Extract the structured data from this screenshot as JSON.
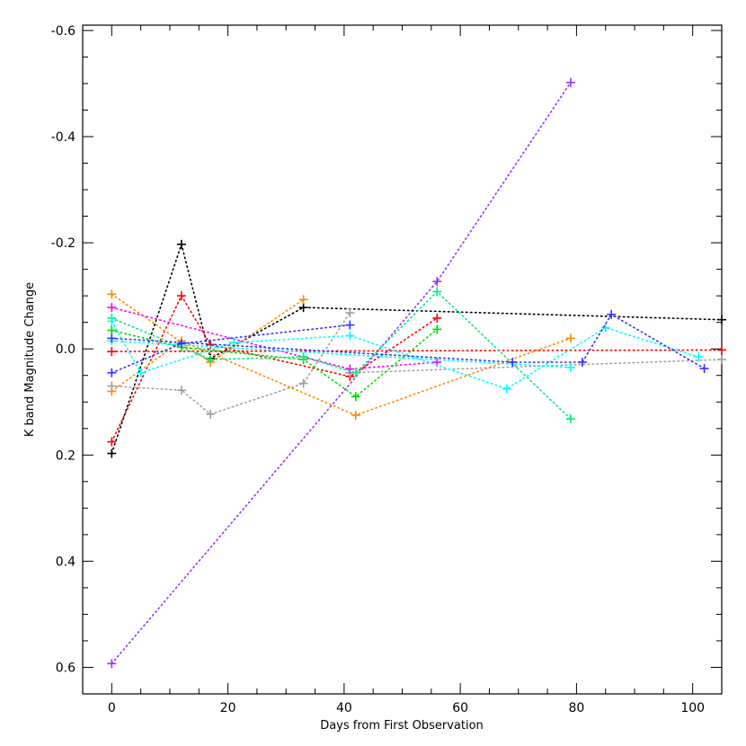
{
  "chart_data": {
    "type": "line",
    "title": "",
    "xlabel": "Days from First Observation",
    "ylabel": "K band Magnitude Change",
    "xlim": [
      -5,
      105
    ],
    "ylim": [
      0.65,
      -0.61
    ],
    "y_inverted": true,
    "x_ticks": [
      0,
      20,
      40,
      60,
      80,
      100
    ],
    "y_ticks": [
      0.6,
      0.4,
      0.2,
      0.0,
      -0.2,
      -0.4,
      -0.6
    ],
    "y_tick_labels": [
      "0.6",
      "0.4",
      "0.2",
      "0.0",
      "-0.2",
      "-0.4",
      "-0.6"
    ],
    "x_tick_labels": [
      "0",
      "20",
      "40",
      "60",
      "80",
      "100"
    ],
    "line_style": "dotted",
    "marker": "plus",
    "grid": false,
    "legend": "none",
    "series": [
      {
        "color": "#9b30ff",
        "points": [
          [
            0,
            0.593
          ],
          [
            56,
            -0.127
          ],
          [
            79,
            -0.502
          ]
        ]
      },
      {
        "color": "#000000",
        "points": [
          [
            0,
            0.197
          ],
          [
            12,
            -0.197
          ],
          [
            17,
            0.018
          ],
          [
            33,
            -0.078
          ],
          [
            105,
            -0.055
          ]
        ]
      },
      {
        "color": "#ff0000",
        "points": [
          [
            0,
            0.175
          ],
          [
            12,
            -0.1
          ],
          [
            17,
            -0.008
          ],
          [
            41,
            0.052
          ],
          [
            56,
            -0.058
          ]
        ]
      },
      {
        "color": "#ff0000",
        "points": [
          [
            0,
            0.005
          ],
          [
            105,
            0.002
          ]
        ]
      },
      {
        "color": "#ff8c00",
        "points": [
          [
            0,
            -0.103
          ],
          [
            17,
            0.025
          ],
          [
            33,
            -0.093
          ]
        ]
      },
      {
        "color": "#ff8c00",
        "points": [
          [
            0,
            0.08
          ],
          [
            12,
            -0.015
          ],
          [
            42,
            0.125
          ],
          [
            79,
            -0.02
          ]
        ]
      },
      {
        "color": "#a0a0a0",
        "points": [
          [
            0,
            0.07
          ],
          [
            12,
            0.078
          ],
          [
            17,
            0.123
          ],
          [
            33,
            0.065
          ],
          [
            41,
            -0.068
          ]
        ]
      },
      {
        "color": "#a0a0a0",
        "points": [
          [
            41,
            0.045
          ],
          [
            105,
            0.02
          ]
        ]
      },
      {
        "color": "#ff00ff",
        "points": [
          [
            0,
            -0.078
          ],
          [
            41,
            0.038
          ],
          [
            56,
            0.025
          ]
        ]
      },
      {
        "color": "#00dd00",
        "points": [
          [
            0,
            -0.035
          ],
          [
            12,
            -0.003
          ],
          [
            33,
            0.02
          ],
          [
            42,
            0.09
          ],
          [
            56,
            -0.037
          ]
        ]
      },
      {
        "color": "#00ee77",
        "points": [
          [
            0,
            -0.058
          ],
          [
            17,
            0.02
          ],
          [
            33,
            0.015
          ],
          [
            42,
            0.045
          ],
          [
            56,
            -0.108
          ],
          [
            79,
            0.132
          ]
        ]
      },
      {
        "color": "#00ffff",
        "points": [
          [
            0,
            -0.052
          ],
          [
            5,
            0.045
          ],
          [
            21,
            -0.012
          ],
          [
            41,
            -0.025
          ],
          [
            68,
            0.075
          ],
          [
            85,
            -0.04
          ],
          [
            101,
            0.015
          ]
        ]
      },
      {
        "color": "#00ffff",
        "points": [
          [
            0,
            -0.015
          ],
          [
            79,
            0.035
          ]
        ]
      },
      {
        "color": "#3333ff",
        "points": [
          [
            0,
            0.045
          ],
          [
            12,
            -0.01
          ],
          [
            41,
            -0.045
          ]
        ]
      },
      {
        "color": "#3333ff",
        "points": [
          [
            0,
            -0.02
          ],
          [
            69,
            0.025
          ],
          [
            81,
            0.025
          ],
          [
            86,
            -0.065
          ],
          [
            102,
            0.037
          ]
        ]
      }
    ]
  }
}
